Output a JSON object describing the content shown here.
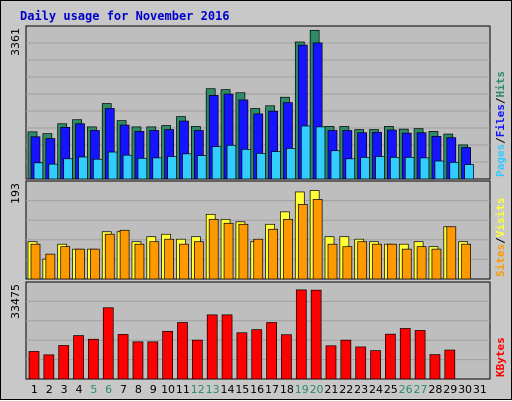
{
  "chart_data": {
    "type": "bar",
    "title": "Daily usage for November 2016",
    "days": [
      "1",
      "2",
      "3",
      "4",
      "5",
      "6",
      "7",
      "8",
      "9",
      "10",
      "11",
      "12",
      "13",
      "14",
      "15",
      "16",
      "17",
      "18",
      "19",
      "20",
      "21",
      "22",
      "23",
      "24",
      "25",
      "26",
      "27",
      "28",
      "29",
      "30",
      "31"
    ],
    "weekend_days": [
      "5",
      "6",
      "12",
      "13",
      "19",
      "20",
      "26",
      "27"
    ],
    "panels": [
      {
        "id": "hits",
        "max_label": "3361",
        "max": 3361,
        "legend": [
          "Pages",
          "/",
          "Files",
          "/",
          "Hits"
        ],
        "series": [
          {
            "name": "Hits",
            "color": "#2e8b66",
            "values": [
              1050,
              1010,
              1230,
              1320,
              1160,
              1680,
              1300,
              1160,
              1160,
              1190,
              1390,
              1170,
              2010,
              1990,
              1920,
              1570,
              1630,
              1820,
              3050,
              3310,
              1170,
              1170,
              1100,
              1100,
              1170,
              1110,
              1120,
              1060,
              1000,
              760,
              0
            ]
          },
          {
            "name": "Files",
            "color": "#1414ff",
            "values": [
              940,
              900,
              1150,
              1230,
              1080,
              1570,
              1200,
              1060,
              1080,
              1100,
              1290,
              1080,
              1860,
              1890,
              1760,
              1450,
              1510,
              1700,
              2980,
              3030,
              1080,
              1080,
              1030,
              1040,
              1090,
              1020,
              1030,
              950,
              920,
              700,
              0
            ]
          },
          {
            "name": "Pages",
            "color": "#33ccff",
            "values": [
              360,
              330,
              450,
              490,
              440,
              600,
              530,
              460,
              470,
              500,
              560,
              520,
              720,
              750,
              660,
              570,
              610,
              680,
              1180,
              1160,
              630,
              450,
              480,
              500,
              480,
              480,
              470,
              400,
              370,
              320,
              0
            ]
          }
        ]
      },
      {
        "id": "visits",
        "max_label": "193",
        "max": 193,
        "legend": [
          "Sites",
          "/",
          "Visits"
        ],
        "series": [
          {
            "name": "Visits",
            "color": "#ffff33",
            "values": [
              75,
              40,
              70,
              60,
              60,
              95,
              95,
              75,
              85,
              90,
              80,
              85,
              130,
              120,
              115,
              75,
              110,
              135,
              175,
              178,
              85,
              85,
              80,
              75,
              70,
              70,
              75,
              65,
              105,
              75,
              0
            ]
          },
          {
            "name": "Sites",
            "color": "#ff9900",
            "values": [
              70,
              50,
              65,
              60,
              60,
              90,
              98,
              70,
              75,
              80,
              70,
              75,
              120,
              112,
              110,
              80,
              100,
              120,
              150,
              160,
              70,
              65,
              75,
              70,
              70,
              60,
              65,
              60,
              105,
              70,
              0
            ]
          }
        ]
      },
      {
        "id": "kbytes",
        "max_label": "33475",
        "max": 33475,
        "legend": [
          "KBytes"
        ],
        "series": [
          {
            "name": "KBytes",
            "color": "#ff0000",
            "values": [
              9700,
              8500,
              11800,
              15300,
              14000,
              25100,
              15700,
              13100,
              13100,
              16800,
              19900,
              13700,
              22600,
              22600,
              16300,
              17400,
              19900,
              15600,
              31400,
              31300,
              11700,
              13700,
              11300,
              10000,
              15800,
              17800,
              17100,
              8600,
              10200,
              0,
              0
            ]
          }
        ]
      }
    ]
  }
}
